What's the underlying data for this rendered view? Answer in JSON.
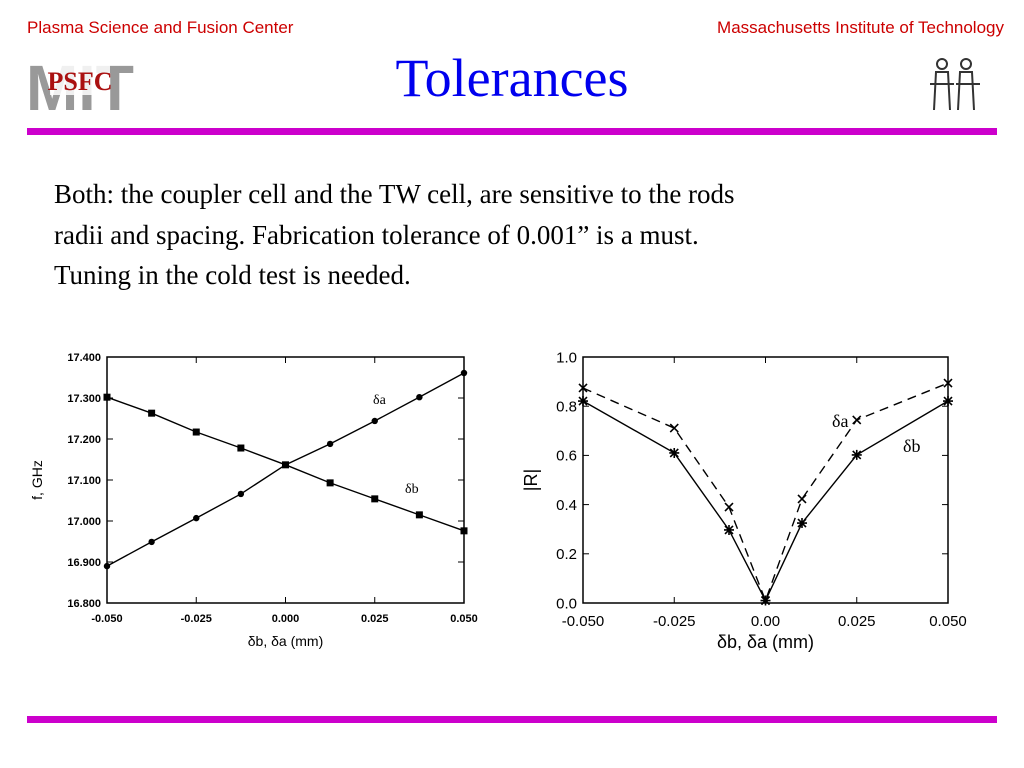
{
  "header": {
    "left": "Plasma Science and Fusion Center",
    "right": "Massachusetts Institute of Technology",
    "title": "Tolerances",
    "logo_back": "MIT",
    "logo_front": "PSFC"
  },
  "body": [
    "Both: the coupler cell and the TW cell, are sensitive to the rods",
    "radii and spacing. Fabrication tolerance of 0.001” is a must.",
    "Tuning in the cold test is needed."
  ],
  "chart_data": [
    {
      "type": "line",
      "xlabel": "δb, δa (mm)",
      "ylabel": "f, GHz",
      "x": [
        -0.05,
        -0.0375,
        -0.025,
        -0.0125,
        0,
        0.0125,
        0.025,
        0.0375,
        0.05
      ],
      "xlim": [
        -0.05,
        0.05
      ],
      "xticks": [
        {
          "value": -0.05,
          "label": "-0.050"
        },
        {
          "value": -0.025,
          "label": "-0.025"
        },
        {
          "value": 0,
          "label": "0.000"
        },
        {
          "value": 0.025,
          "label": "0.025"
        },
        {
          "value": 0.05,
          "label": "0.050"
        }
      ],
      "ylim": [
        16.8,
        17.4
      ],
      "yticks": [
        {
          "value": 16.8,
          "label": "16.800"
        },
        {
          "value": 16.9,
          "label": "16.900"
        },
        {
          "value": 17.0,
          "label": "17.000"
        },
        {
          "value": 17.1,
          "label": "17.100"
        },
        {
          "value": 17.2,
          "label": "17.200"
        },
        {
          "value": 17.3,
          "label": "17.300"
        },
        {
          "value": 17.4,
          "label": "17.400"
        }
      ],
      "grid": false,
      "series": [
        {
          "name": "δa",
          "color": "#000000",
          "marker": "circle",
          "dashed": false,
          "values": [
            16.89,
            16.949,
            17.007,
            17.066,
            17.137,
            17.188,
            17.244,
            17.302,
            17.361
          ]
        },
        {
          "name": "δb",
          "color": "#000000",
          "marker": "square",
          "dashed": false,
          "values": [
            17.302,
            17.263,
            17.217,
            17.178,
            17.137,
            17.093,
            17.054,
            17.015,
            16.976
          ]
        }
      ]
    },
    {
      "type": "line",
      "xlabel": "δb, δa (mm)",
      "ylabel": "|R|",
      "x": [
        -0.05,
        -0.025,
        -0.01,
        0,
        0.01,
        0.025,
        0.05
      ],
      "xlim": [
        -0.05,
        0.05
      ],
      "xticks": [
        {
          "value": -0.05,
          "label": "-0.050"
        },
        {
          "value": -0.025,
          "label": "-0.025"
        },
        {
          "value": 0,
          "label": "0.00"
        },
        {
          "value": 0.025,
          "label": "0.025"
        },
        {
          "value": 0.05,
          "label": "0.050"
        }
      ],
      "ylim": [
        0,
        1
      ],
      "yticks": [
        {
          "value": 0,
          "label": "0.0"
        },
        0.2,
        0.4,
        0.6,
        0.8,
        {
          "value": 1,
          "label": "1.0"
        }
      ],
      "grid": false,
      "series": [
        {
          "name": "δa",
          "color": "#000000",
          "marker": "x",
          "dashed": true,
          "values": [
            0.874,
            0.711,
            0.39,
            0.01,
            0.423,
            0.744,
            0.894
          ]
        },
        {
          "name": "δb",
          "color": "#000000",
          "marker": "star",
          "dashed": false,
          "values": [
            0.821,
            0.61,
            0.297,
            0.01,
            0.325,
            0.602,
            0.821
          ]
        }
      ]
    }
  ]
}
